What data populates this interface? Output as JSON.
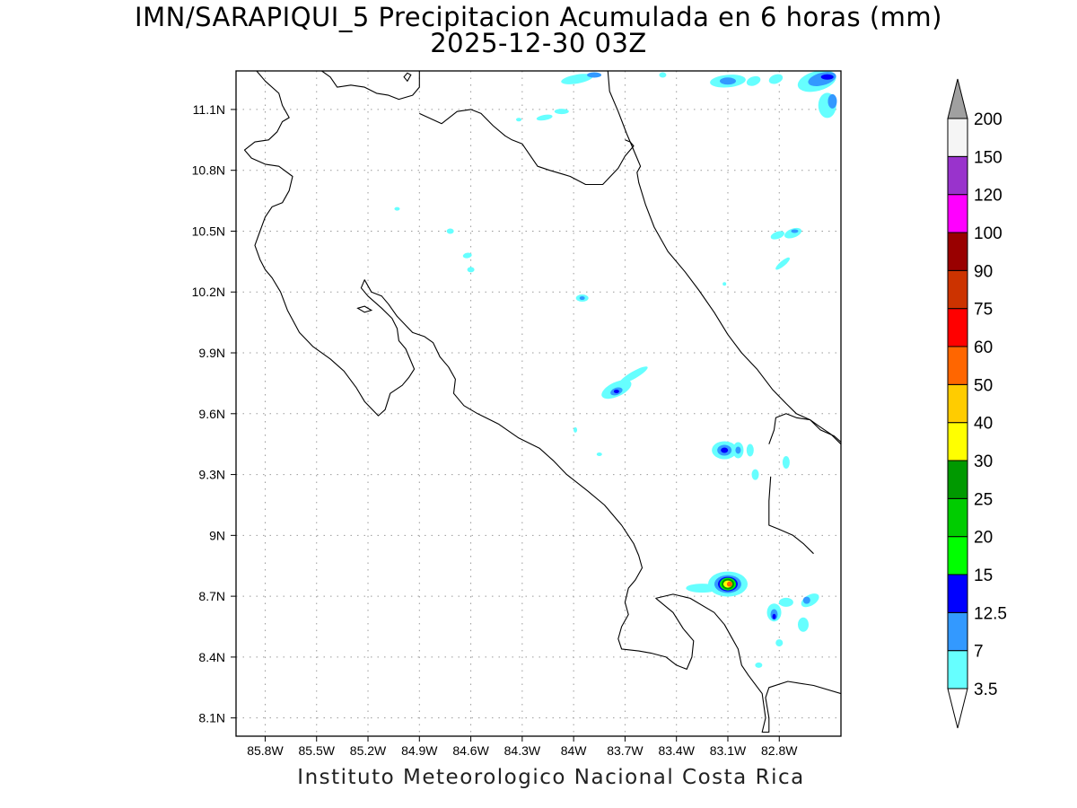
{
  "title": {
    "line1": "IMN/SARAPIQUI_5 Precipitacion Acumulada en 6 horas (mm)",
    "line2": "2025-12-30 03Z"
  },
  "footer": "Instituto Meteorologico Nacional Costa Rica",
  "map": {
    "lon_range": [
      -85.97,
      -82.44
    ],
    "lat_range": [
      8.01,
      11.29
    ],
    "lon_ticks": [
      "85.8W",
      "85.5W",
      "85.2W",
      "84.9W",
      "84.6W",
      "84.3W",
      "84W",
      "83.7W",
      "83.4W",
      "83.1W",
      "82.8W"
    ],
    "lon_values": [
      -85.8,
      -85.5,
      -85.2,
      -84.9,
      -84.6,
      -84.3,
      -84.0,
      -83.7,
      -83.4,
      -83.1,
      -82.8
    ],
    "lat_ticks": [
      "11.1N",
      "10.8N",
      "10.5N",
      "10.2N",
      "9.9N",
      "9.6N",
      "9.3N",
      "9N",
      "8.7N",
      "8.4N",
      "8.1N"
    ],
    "lat_values": [
      11.1,
      10.8,
      10.5,
      10.2,
      9.9,
      9.6,
      9.3,
      9.0,
      8.7,
      8.4,
      8.1
    ],
    "grid": true
  },
  "colorbar": {
    "labels": [
      "3.5",
      "7",
      "12.5",
      "15",
      "20",
      "25",
      "30",
      "40",
      "50",
      "60",
      "75",
      "90",
      "100",
      "120",
      "150",
      "200"
    ],
    "colors": [
      "#66ffff",
      "#3399ff",
      "#0000ff",
      "#00ff00",
      "#00cc00",
      "#009900",
      "#ffff00",
      "#ffcc00",
      "#ff6600",
      "#ff0000",
      "#cc3300",
      "#990000",
      "#ff00ff",
      "#9933cc",
      "#f5f5f5"
    ],
    "under_color": "#ffffff",
    "over_color": "#a0a0a0"
  },
  "precip_cells": [
    {
      "lon": -83.75,
      "lat": 9.72,
      "rx": 18,
      "ry": 8,
      "rot": -25,
      "level": 0
    },
    {
      "lon": -83.65,
      "lat": 9.79,
      "rx": 18,
      "ry": 4,
      "rot": -30,
      "level": 0
    },
    {
      "lon": -83.75,
      "lat": 9.71,
      "rx": 7,
      "ry": 4,
      "rot": -20,
      "level": 1
    },
    {
      "lon": -83.75,
      "lat": 9.71,
      "rx": 3,
      "ry": 2,
      "rot": 0,
      "level": 2
    },
    {
      "lon": -83.12,
      "lat": 9.42,
      "rx": 14,
      "ry": 10,
      "rot": 0,
      "level": 0
    },
    {
      "lon": -83.12,
      "lat": 9.42,
      "rx": 8,
      "ry": 6,
      "rot": 0,
      "level": 1
    },
    {
      "lon": -83.12,
      "lat": 9.42,
      "rx": 4,
      "ry": 3,
      "rot": 0,
      "level": 2
    },
    {
      "lon": -83.04,
      "lat": 9.42,
      "rx": 6,
      "ry": 9,
      "rot": 0,
      "level": 0
    },
    {
      "lon": -83.04,
      "lat": 9.42,
      "rx": 3,
      "ry": 4,
      "rot": 0,
      "level": 1
    },
    {
      "lon": -82.97,
      "lat": 9.42,
      "rx": 4,
      "ry": 7,
      "rot": 0,
      "level": 0
    },
    {
      "lon": -82.94,
      "lat": 9.3,
      "rx": 4,
      "ry": 6,
      "rot": 0,
      "level": 0
    },
    {
      "lon": -82.76,
      "lat": 9.36,
      "rx": 4,
      "ry": 7,
      "rot": 0,
      "level": 0
    },
    {
      "lon": -83.1,
      "lat": 8.76,
      "rx": 22,
      "ry": 14,
      "rot": 0,
      "level": 0
    },
    {
      "lon": -83.25,
      "lat": 8.74,
      "rx": 18,
      "ry": 5,
      "rot": 0,
      "level": 0
    },
    {
      "lon": -83.1,
      "lat": 8.76,
      "rx": 15,
      "ry": 10,
      "rot": 0,
      "level": 1
    },
    {
      "lon": -83.1,
      "lat": 8.76,
      "rx": 11,
      "ry": 8,
      "rot": 0,
      "level": 2
    },
    {
      "lon": -83.1,
      "lat": 8.76,
      "rx": 9,
      "ry": 7,
      "rot": 0,
      "level": 3
    },
    {
      "lon": -83.1,
      "lat": 8.76,
      "rx": 7,
      "ry": 6,
      "rot": 0,
      "level": 5
    },
    {
      "lon": -83.1,
      "lat": 8.76,
      "rx": 5,
      "ry": 4,
      "rot": 0,
      "level": 6
    },
    {
      "lon": -83.09,
      "lat": 8.76,
      "rx": 3,
      "ry": 3,
      "rot": 0,
      "level": 8
    },
    {
      "lon": -82.83,
      "lat": 8.62,
      "rx": 8,
      "ry": 10,
      "rot": 0,
      "level": 0
    },
    {
      "lon": -82.83,
      "lat": 8.61,
      "rx": 4,
      "ry": 6,
      "rot": 0,
      "level": 1
    },
    {
      "lon": -82.83,
      "lat": 8.6,
      "rx": 2,
      "ry": 3,
      "rot": 0,
      "level": 2
    },
    {
      "lon": -82.76,
      "lat": 8.67,
      "rx": 8,
      "ry": 5,
      "rot": 0,
      "level": 0
    },
    {
      "lon": -82.62,
      "lat": 8.68,
      "rx": 11,
      "ry": 6,
      "rot": -30,
      "level": 0
    },
    {
      "lon": -82.64,
      "lat": 8.68,
      "rx": 4,
      "ry": 4,
      "rot": 0,
      "level": 1
    },
    {
      "lon": -82.66,
      "lat": 8.56,
      "rx": 6,
      "ry": 8,
      "rot": 0,
      "level": 0
    },
    {
      "lon": -82.8,
      "lat": 8.47,
      "rx": 4,
      "ry": 4,
      "rot": 0,
      "level": 0
    },
    {
      "lon": -82.92,
      "lat": 8.36,
      "rx": 4,
      "ry": 3,
      "rot": 0,
      "level": 0
    },
    {
      "lon": -82.81,
      "lat": 10.48,
      "rx": 8,
      "ry": 4,
      "rot": -20,
      "level": 0
    },
    {
      "lon": -82.72,
      "lat": 10.49,
      "rx": 10,
      "ry": 5,
      "rot": -20,
      "level": 0
    },
    {
      "lon": -82.71,
      "lat": 10.5,
      "rx": 4,
      "ry": 2,
      "rot": 0,
      "level": 1
    },
    {
      "lon": -82.78,
      "lat": 10.34,
      "rx": 10,
      "ry": 3,
      "rot": -40,
      "level": 0
    },
    {
      "lon": -83.95,
      "lat": 10.17,
      "rx": 7,
      "ry": 4,
      "rot": 0,
      "level": 0
    },
    {
      "lon": -83.95,
      "lat": 10.17,
      "rx": 3,
      "ry": 2,
      "rot": 0,
      "level": 1
    },
    {
      "lon": -84.62,
      "lat": 10.38,
      "rx": 5,
      "ry": 3,
      "rot": -10,
      "level": 0
    },
    {
      "lon": -84.72,
      "lat": 10.5,
      "rx": 4,
      "ry": 3,
      "rot": 0,
      "level": 0
    },
    {
      "lon": -84.6,
      "lat": 10.31,
      "rx": 4,
      "ry": 3,
      "rot": 0,
      "level": 0
    },
    {
      "lon": -85.03,
      "lat": 10.61,
      "rx": 3,
      "ry": 2,
      "rot": 0,
      "level": 0
    },
    {
      "lon": -83.98,
      "lat": 11.25,
      "rx": 18,
      "ry": 5,
      "rot": -10,
      "level": 0
    },
    {
      "lon": -83.88,
      "lat": 11.27,
      "rx": 8,
      "ry": 3,
      "rot": 0,
      "level": 1
    },
    {
      "lon": -83.1,
      "lat": 11.24,
      "rx": 20,
      "ry": 7,
      "rot": -5,
      "level": 0
    },
    {
      "lon": -83.1,
      "lat": 11.24,
      "rx": 9,
      "ry": 4,
      "rot": 0,
      "level": 1
    },
    {
      "lon": -82.95,
      "lat": 11.24,
      "rx": 8,
      "ry": 5,
      "rot": -20,
      "level": 0
    },
    {
      "lon": -82.82,
      "lat": 11.25,
      "rx": 8,
      "ry": 5,
      "rot": -20,
      "level": 0
    },
    {
      "lon": -82.58,
      "lat": 11.24,
      "rx": 22,
      "ry": 11,
      "rot": -15,
      "level": 0
    },
    {
      "lon": -82.55,
      "lat": 11.25,
      "rx": 16,
      "ry": 7,
      "rot": -15,
      "level": 1
    },
    {
      "lon": -82.52,
      "lat": 11.26,
      "rx": 7,
      "ry": 3,
      "rot": 0,
      "level": 2
    },
    {
      "lon": -82.52,
      "lat": 11.12,
      "rx": 10,
      "ry": 14,
      "rot": 0,
      "level": 0
    },
    {
      "lon": -82.49,
      "lat": 11.14,
      "rx": 5,
      "ry": 8,
      "rot": 0,
      "level": 1
    },
    {
      "lon": -83.48,
      "lat": 11.27,
      "rx": 4,
      "ry": 3,
      "rot": 0,
      "level": 0
    },
    {
      "lon": -84.07,
      "lat": 11.09,
      "rx": 8,
      "ry": 3,
      "rot": 0,
      "level": 0
    },
    {
      "lon": -84.17,
      "lat": 11.06,
      "rx": 9,
      "ry": 3,
      "rot": -10,
      "level": 0
    },
    {
      "lon": -84.32,
      "lat": 11.05,
      "rx": 3,
      "ry": 2,
      "rot": 0,
      "level": 0
    },
    {
      "lon": -83.99,
      "lat": 9.52,
      "rx": 2,
      "ry": 3,
      "rot": 0,
      "level": 0
    },
    {
      "lon": -83.85,
      "lat": 9.4,
      "rx": 3,
      "ry": 2,
      "rot": 0,
      "level": 0
    },
    {
      "lon": -83.12,
      "lat": 10.24,
      "rx": 2,
      "ry": 2,
      "rot": 0,
      "level": 0
    }
  ],
  "coastlines": [
    [
      [
        -85.85,
        11.29
      ],
      [
        -85.8,
        11.24
      ],
      [
        -85.72,
        11.18
      ],
      [
        -85.7,
        11.12
      ],
      [
        -85.66,
        11.06
      ],
      [
        -85.7,
        11.04
      ],
      [
        -85.73,
        10.99
      ],
      [
        -85.78,
        10.95
      ],
      [
        -85.86,
        10.94
      ],
      [
        -85.92,
        10.9
      ],
      [
        -85.88,
        10.86
      ],
      [
        -85.8,
        10.83
      ],
      [
        -85.72,
        10.82
      ],
      [
        -85.64,
        10.77
      ],
      [
        -85.66,
        10.7
      ],
      [
        -85.7,
        10.64
      ],
      [
        -85.76,
        10.62
      ],
      [
        -85.8,
        10.57
      ],
      [
        -85.83,
        10.5
      ],
      [
        -85.86,
        10.43
      ],
      [
        -85.83,
        10.36
      ],
      [
        -85.8,
        10.31
      ],
      [
        -85.76,
        10.27
      ],
      [
        -85.71,
        10.2
      ],
      [
        -85.67,
        10.11
      ],
      [
        -85.6,
        10.0
      ],
      [
        -85.52,
        9.93
      ],
      [
        -85.42,
        9.87
      ],
      [
        -85.34,
        9.81
      ],
      [
        -85.27,
        9.73
      ],
      [
        -85.22,
        9.66
      ],
      [
        -85.14,
        9.59
      ],
      [
        -85.1,
        9.62
      ],
      [
        -85.07,
        9.7
      ],
      [
        -85.0,
        9.74
      ],
      [
        -84.96,
        9.78
      ],
      [
        -84.93,
        9.82
      ],
      [
        -84.95,
        9.86
      ],
      [
        -84.98,
        9.92
      ],
      [
        -85.02,
        9.96
      ],
      [
        -85.03,
        10.02
      ],
      [
        -85.06,
        10.07
      ],
      [
        -85.12,
        10.12
      ],
      [
        -85.2,
        10.18
      ],
      [
        -85.24,
        10.22
      ],
      [
        -85.22,
        10.26
      ],
      [
        -85.18,
        10.2
      ],
      [
        -85.12,
        10.18
      ],
      [
        -85.08,
        10.14
      ],
      [
        -85.03,
        10.08
      ],
      [
        -84.94,
        10.0
      ],
      [
        -84.87,
        9.98
      ],
      [
        -84.82,
        9.95
      ],
      [
        -84.78,
        9.88
      ],
      [
        -84.73,
        9.83
      ],
      [
        -84.69,
        9.77
      ],
      [
        -84.7,
        9.7
      ],
      [
        -84.64,
        9.64
      ],
      [
        -84.56,
        9.6
      ],
      [
        -84.44,
        9.55
      ],
      [
        -84.32,
        9.48
      ],
      [
        -84.2,
        9.43
      ],
      [
        -84.12,
        9.37
      ],
      [
        -84.04,
        9.3
      ],
      [
        -83.92,
        9.22
      ],
      [
        -83.82,
        9.15
      ],
      [
        -83.72,
        9.05
      ],
      [
        -83.65,
        8.96
      ],
      [
        -83.62,
        8.9
      ],
      [
        -83.6,
        8.84
      ],
      [
        -83.64,
        8.78
      ],
      [
        -83.68,
        8.74
      ],
      [
        -83.7,
        8.67
      ],
      [
        -83.68,
        8.61
      ],
      [
        -83.72,
        8.55
      ],
      [
        -83.74,
        8.49
      ],
      [
        -83.72,
        8.44
      ],
      [
        -83.62,
        8.43
      ],
      [
        -83.55,
        8.42
      ],
      [
        -83.46,
        8.4
      ],
      [
        -83.4,
        8.36
      ],
      [
        -83.34,
        8.34
      ],
      [
        -83.31,
        8.4
      ],
      [
        -83.3,
        8.48
      ],
      [
        -83.36,
        8.54
      ],
      [
        -83.42,
        8.62
      ],
      [
        -83.52,
        8.69
      ],
      [
        -83.42,
        8.71
      ],
      [
        -83.32,
        8.69
      ],
      [
        -83.18,
        8.62
      ],
      [
        -83.12,
        8.56
      ],
      [
        -83.08,
        8.5
      ],
      [
        -83.04,
        8.44
      ],
      [
        -83.02,
        8.36
      ],
      [
        -82.98,
        8.31
      ],
      [
        -82.9,
        8.22
      ],
      [
        -82.88,
        8.1
      ],
      [
        -82.9,
        8.03
      ],
      [
        -82.86,
        8.03
      ],
      [
        -82.86,
        8.1
      ],
      [
        -82.88,
        8.2
      ],
      [
        -82.86,
        8.25
      ],
      [
        -82.75,
        8.28
      ],
      [
        -82.6,
        8.26
      ],
      [
        -82.44,
        8.22
      ]
    ],
    [
      [
        -83.8,
        11.29
      ],
      [
        -83.79,
        11.19
      ],
      [
        -83.74,
        11.09
      ],
      [
        -83.69,
        10.98
      ],
      [
        -83.66,
        10.92
      ],
      [
        -83.63,
        10.86
      ],
      [
        -83.61,
        10.82
      ],
      [
        -83.63,
        10.79
      ],
      [
        -83.62,
        10.74
      ],
      [
        -83.58,
        10.63
      ],
      [
        -83.53,
        10.52
      ],
      [
        -83.45,
        10.4
      ],
      [
        -83.35,
        10.3
      ],
      [
        -83.27,
        10.21
      ],
      [
        -83.18,
        10.1
      ],
      [
        -83.1,
        9.99
      ],
      [
        -83.02,
        9.9
      ],
      [
        -82.93,
        9.82
      ],
      [
        -82.84,
        9.72
      ],
      [
        -82.76,
        9.65
      ],
      [
        -82.7,
        9.6
      ],
      [
        -82.62,
        9.57
      ],
      [
        -82.56,
        9.52
      ],
      [
        -82.48,
        9.49
      ],
      [
        -82.44,
        9.46
      ]
    ],
    [
      [
        -84.9,
        11.29
      ],
      [
        -84.9,
        11.21
      ],
      [
        -84.94,
        11.17
      ],
      [
        -85.02,
        11.15
      ],
      [
        -85.08,
        11.17
      ],
      [
        -85.15,
        11.18
      ],
      [
        -85.22,
        11.21
      ],
      [
        -85.3,
        11.22
      ],
      [
        -85.38,
        11.21
      ],
      [
        -85.42,
        11.26
      ],
      [
        -85.47,
        11.29
      ]
    ],
    [
      [
        -84.9,
        11.08
      ],
      [
        -84.77,
        11.03
      ],
      [
        -84.68,
        11.09
      ],
      [
        -84.6,
        11.1
      ],
      [
        -84.54,
        11.08
      ],
      [
        -84.47,
        11.02
      ],
      [
        -84.4,
        10.97
      ],
      [
        -84.36,
        10.95
      ],
      [
        -84.3,
        10.93
      ],
      [
        -84.21,
        10.82
      ],
      [
        -84.14,
        10.8
      ],
      [
        -84.06,
        10.78
      ],
      [
        -84.02,
        10.77
      ],
      [
        -83.93,
        10.73
      ],
      [
        -83.83,
        10.73
      ],
      [
        -83.74,
        10.81
      ],
      [
        -83.7,
        10.87
      ],
      [
        -83.65,
        10.92
      ],
      [
        -83.67,
        10.94
      ],
      [
        -83.7,
        10.95
      ]
    ],
    [
      [
        -82.85,
        9.29
      ],
      [
        -82.86,
        9.17
      ],
      [
        -82.86,
        9.05
      ],
      [
        -82.8,
        9.03
      ],
      [
        -82.72,
        9.0
      ],
      [
        -82.66,
        8.96
      ],
      [
        -82.6,
        8.91
      ]
    ],
    [
      [
        -82.44,
        9.45
      ],
      [
        -82.5,
        9.5
      ],
      [
        -82.57,
        9.54
      ],
      [
        -82.62,
        9.57
      ],
      [
        -82.7,
        9.58
      ],
      [
        -82.76,
        9.6
      ],
      [
        -82.82,
        9.58
      ],
      [
        -82.83,
        9.52
      ],
      [
        -82.86,
        9.45
      ]
    ]
  ],
  "islands": [
    [
      [
        -85.26,
        10.12
      ],
      [
        -85.22,
        10.13
      ],
      [
        -85.18,
        10.11
      ],
      [
        -85.22,
        10.1
      ],
      [
        -85.26,
        10.12
      ]
    ],
    [
      [
        -84.97,
        11.28
      ],
      [
        -84.95,
        11.27
      ],
      [
        -84.97,
        11.24
      ],
      [
        -84.99,
        11.26
      ],
      [
        -84.97,
        11.28
      ]
    ]
  ]
}
